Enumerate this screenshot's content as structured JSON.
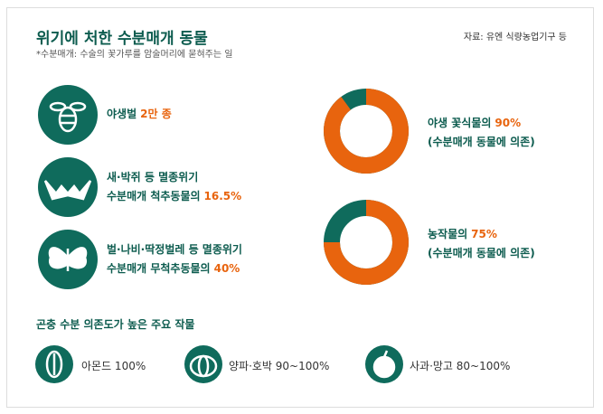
{
  "header": {
    "title": "위기에 처한 수분매개 동물",
    "note": "*수분매개: 수술의 꽃가루를 암술머리에 묻혀주는 일",
    "source": "자료: 유엔 식량농업기구 등"
  },
  "stats": [
    {
      "lines": [
        "야생벌"
      ],
      "highlight": "2만 종"
    },
    {
      "lines": [
        "새·박쥐 등 멸종위기",
        "수분매개 척추동물의"
      ],
      "highlight": "16.5%"
    },
    {
      "lines": [
        "벌·나비·딱정벌레 등 멸종위기",
        "수분매개 무척추동물의"
      ],
      "highlight": "40%"
    }
  ],
  "donuts": [
    {
      "label": "야생 꽃식물의",
      "value": 90,
      "value_label": "90%",
      "note": "(수분매개 동물에 의존)"
    },
    {
      "label": "농작물의",
      "value": 75,
      "value_label": "75%",
      "note": "(수분매개 동물에 의존)"
    }
  ],
  "crops": {
    "title": "곤충 수분 의존도가 높은 주요 작물",
    "items": [
      "아몬드 100%",
      "양파·호박 90~100%",
      "사과·망고 80~100%"
    ]
  }
}
